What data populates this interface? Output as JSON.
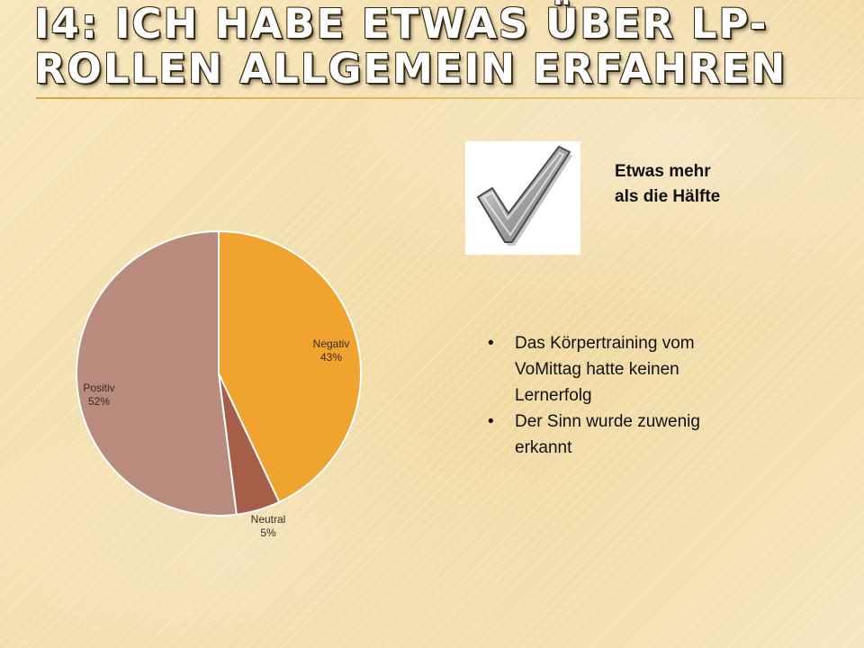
{
  "title": {
    "line1": "I4: Ich habe etwas über LP-",
    "line2": "Rollen allgemein erfahren"
  },
  "side_label": {
    "line1": "Etwas mehr",
    "line2": "als die Hälfte"
  },
  "bullets": [
    {
      "text": "Das Körpertraining vom VoMittag hatte keinen Lernerfolg"
    },
    {
      "text": "Der Sinn wurde zuwenig erkannt"
    }
  ],
  "icons": {
    "checkmark": "checkmark-icon"
  },
  "chart_data": {
    "type": "pie",
    "title": "",
    "categories": [
      "Negativ",
      "Neutral",
      "Positiv"
    ],
    "values": [
      43,
      5,
      52
    ],
    "value_labels": [
      "43%",
      "5%",
      "52%"
    ],
    "colors": [
      "#F0A32F",
      "#A65E49",
      "#B88B7C"
    ]
  },
  "colors": {
    "title_text": "#ffffff",
    "title_outline": "#3a2a12",
    "rule": "#d9a53a",
    "background": "#f3dfae"
  }
}
